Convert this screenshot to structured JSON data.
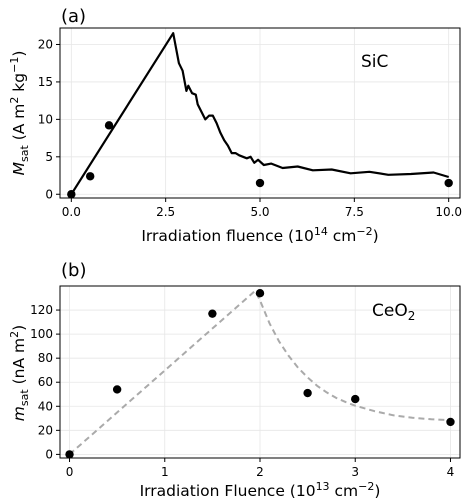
{
  "chart_data": [
    {
      "panel_label": "(a)",
      "type": "line",
      "material_label": "SiC",
      "xlabel": "Irradiation fluence (10^14 cm^-2)",
      "xlabel_parts": {
        "main": "Irradiation fluence (10",
        "exp1": "14",
        "mid": " cm",
        "exp2": "−2",
        "end": ")"
      },
      "ylabel": "M_sat (A m^2 kg^-1)",
      "ylabel_parts": {
        "sym": "M",
        "sub": "sat",
        "a": " (A m",
        "sup1": "2",
        "b": " kg",
        "sup2": "−1",
        "c": ")"
      },
      "xlim": [
        -0.3,
        10.3
      ],
      "ylim": [
        -0.5,
        22.2
      ],
      "xticks": [
        0.0,
        2.5,
        5.0,
        7.5,
        10.0
      ],
      "xtick_labels": [
        "0.0",
        "2.5",
        "5.0",
        "7.5",
        "10.0"
      ],
      "yticks": [
        0,
        5,
        10,
        15,
        20
      ],
      "ytick_labels": [
        "0",
        "5",
        "10",
        "15",
        "20"
      ],
      "grid": true,
      "series": [
        {
          "kind": "line",
          "color": "#000000",
          "x": [
            0.0,
            2.7,
            2.85,
            2.95,
            3.05,
            3.1,
            3.2,
            3.3,
            3.35,
            3.45,
            3.55,
            3.65,
            3.75,
            3.85,
            3.95,
            4.05,
            4.15,
            4.25,
            4.35,
            4.45,
            4.55,
            4.65,
            4.75,
            4.85,
            4.95,
            5.1,
            5.3,
            5.6,
            6.0,
            6.4,
            6.9,
            7.4,
            7.9,
            8.4,
            9.0,
            9.6,
            10.0
          ],
          "y": [
            0.0,
            21.5,
            17.5,
            16.5,
            13.8,
            14.5,
            13.5,
            13.3,
            12.0,
            11.0,
            10.0,
            10.5,
            10.5,
            9.5,
            8.2,
            7.2,
            6.5,
            5.5,
            5.5,
            5.2,
            5.0,
            4.8,
            5.0,
            4.2,
            4.6,
            3.9,
            4.1,
            3.5,
            3.7,
            3.2,
            3.3,
            2.8,
            3.0,
            2.6,
            2.7,
            2.9,
            2.3
          ]
        },
        {
          "kind": "scatter",
          "color": "#000000",
          "x": [
            0.0,
            0.5,
            1.0,
            5.0,
            10.0
          ],
          "y": [
            0.0,
            2.4,
            9.2,
            1.5,
            1.5
          ]
        }
      ]
    },
    {
      "panel_label": "(b)",
      "type": "scatter",
      "material_label": "CeO2",
      "material_label_parts": {
        "main": "CeO",
        "sub": "2"
      },
      "xlabel": "Irradiation Fluence (10^13 cm^-2)",
      "xlabel_parts": {
        "main": "Irradiation Fluence (10",
        "exp1": "13",
        "mid": " cm",
        "exp2": "−2",
        "end": ")"
      },
      "ylabel": "m_sat (nA m^2)",
      "ylabel_parts": {
        "sym": "m",
        "sub": "sat",
        "a": " (nA m",
        "sup1": "2",
        "c": ")"
      },
      "xlim": [
        -0.1,
        4.1
      ],
      "ylim": [
        -3,
        140
      ],
      "xticks": [
        0,
        1,
        2,
        3,
        4
      ],
      "xtick_labels": [
        "0",
        "1",
        "2",
        "3",
        "4"
      ],
      "yticks": [
        0,
        20,
        40,
        60,
        80,
        100,
        120
      ],
      "ytick_labels": [
        "0",
        "20",
        "40",
        "60",
        "80",
        "100",
        "120"
      ],
      "grid": true,
      "series": [
        {
          "kind": "scatter",
          "color": "#000000",
          "x": [
            0.0,
            0.5,
            1.5,
            2.0,
            2.5,
            3.0,
            4.0
          ],
          "y": [
            0.0,
            54.0,
            117.0,
            134.0,
            51.0,
            46.0,
            27.0
          ]
        },
        {
          "kind": "dashed-line",
          "color": "#aaaaaa",
          "x": [
            0.0,
            1.95,
            2.0,
            2.1,
            2.2,
            2.3,
            2.4,
            2.5,
            2.6,
            2.7,
            2.8,
            2.9,
            3.0,
            3.2,
            3.4,
            3.6,
            3.8,
            4.0
          ],
          "y": [
            0.0,
            136.0,
            128.0,
            109.0,
            94.0,
            82.0,
            72.0,
            64.0,
            57.0,
            51.5,
            47.0,
            43.5,
            40.5,
            36.0,
            32.5,
            30.5,
            29.2,
            28.5
          ]
        }
      ]
    }
  ]
}
